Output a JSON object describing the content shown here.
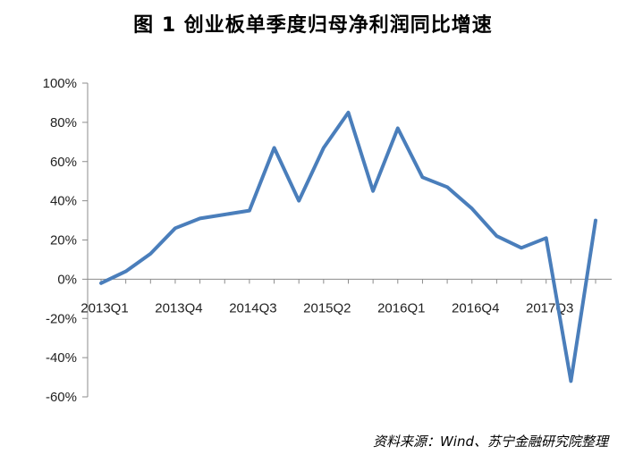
{
  "title": "图 1  创业板单季度归母净利润同比增速",
  "source": "资料来源：Wind、苏宁金融研究院整理",
  "chart_data": {
    "type": "line",
    "title": "图 1  创业板单季度归母净利润同比增速",
    "xlabel": "",
    "ylabel": "",
    "ylim": [
      -60,
      100
    ],
    "yticks": [
      -60,
      -40,
      -20,
      0,
      20,
      40,
      60,
      80,
      100
    ],
    "ytick_labels": [
      "-60%",
      "-40%",
      "-20%",
      "0%",
      "20%",
      "40%",
      "60%",
      "80%",
      "100%"
    ],
    "xtick_labels": [
      "2013Q1",
      "2013Q4",
      "2014Q3",
      "2015Q2",
      "2016Q1",
      "2016Q4",
      "2017Q3"
    ],
    "xtick_indices": [
      0,
      3,
      6,
      9,
      12,
      15,
      18
    ],
    "x": [
      "2013Q1",
      "2013Q2",
      "2013Q3",
      "2013Q4",
      "2014Q1",
      "2014Q2",
      "2014Q3",
      "2014Q4",
      "2015Q1",
      "2015Q2",
      "2015Q3",
      "2015Q4",
      "2016Q1",
      "2016Q2",
      "2016Q3",
      "2016Q4",
      "2017Q1",
      "2017Q2",
      "2017Q3",
      "2017Q4",
      "2018Q1"
    ],
    "series": [
      {
        "values": [
          -2,
          4,
          13,
          26,
          31,
          33,
          35,
          67,
          40,
          67,
          85,
          45,
          77,
          52,
          47,
          36,
          22,
          16,
          21,
          -52,
          30
        ],
        "color": "#4a7ebb"
      }
    ],
    "grid": false,
    "legend": "none"
  }
}
